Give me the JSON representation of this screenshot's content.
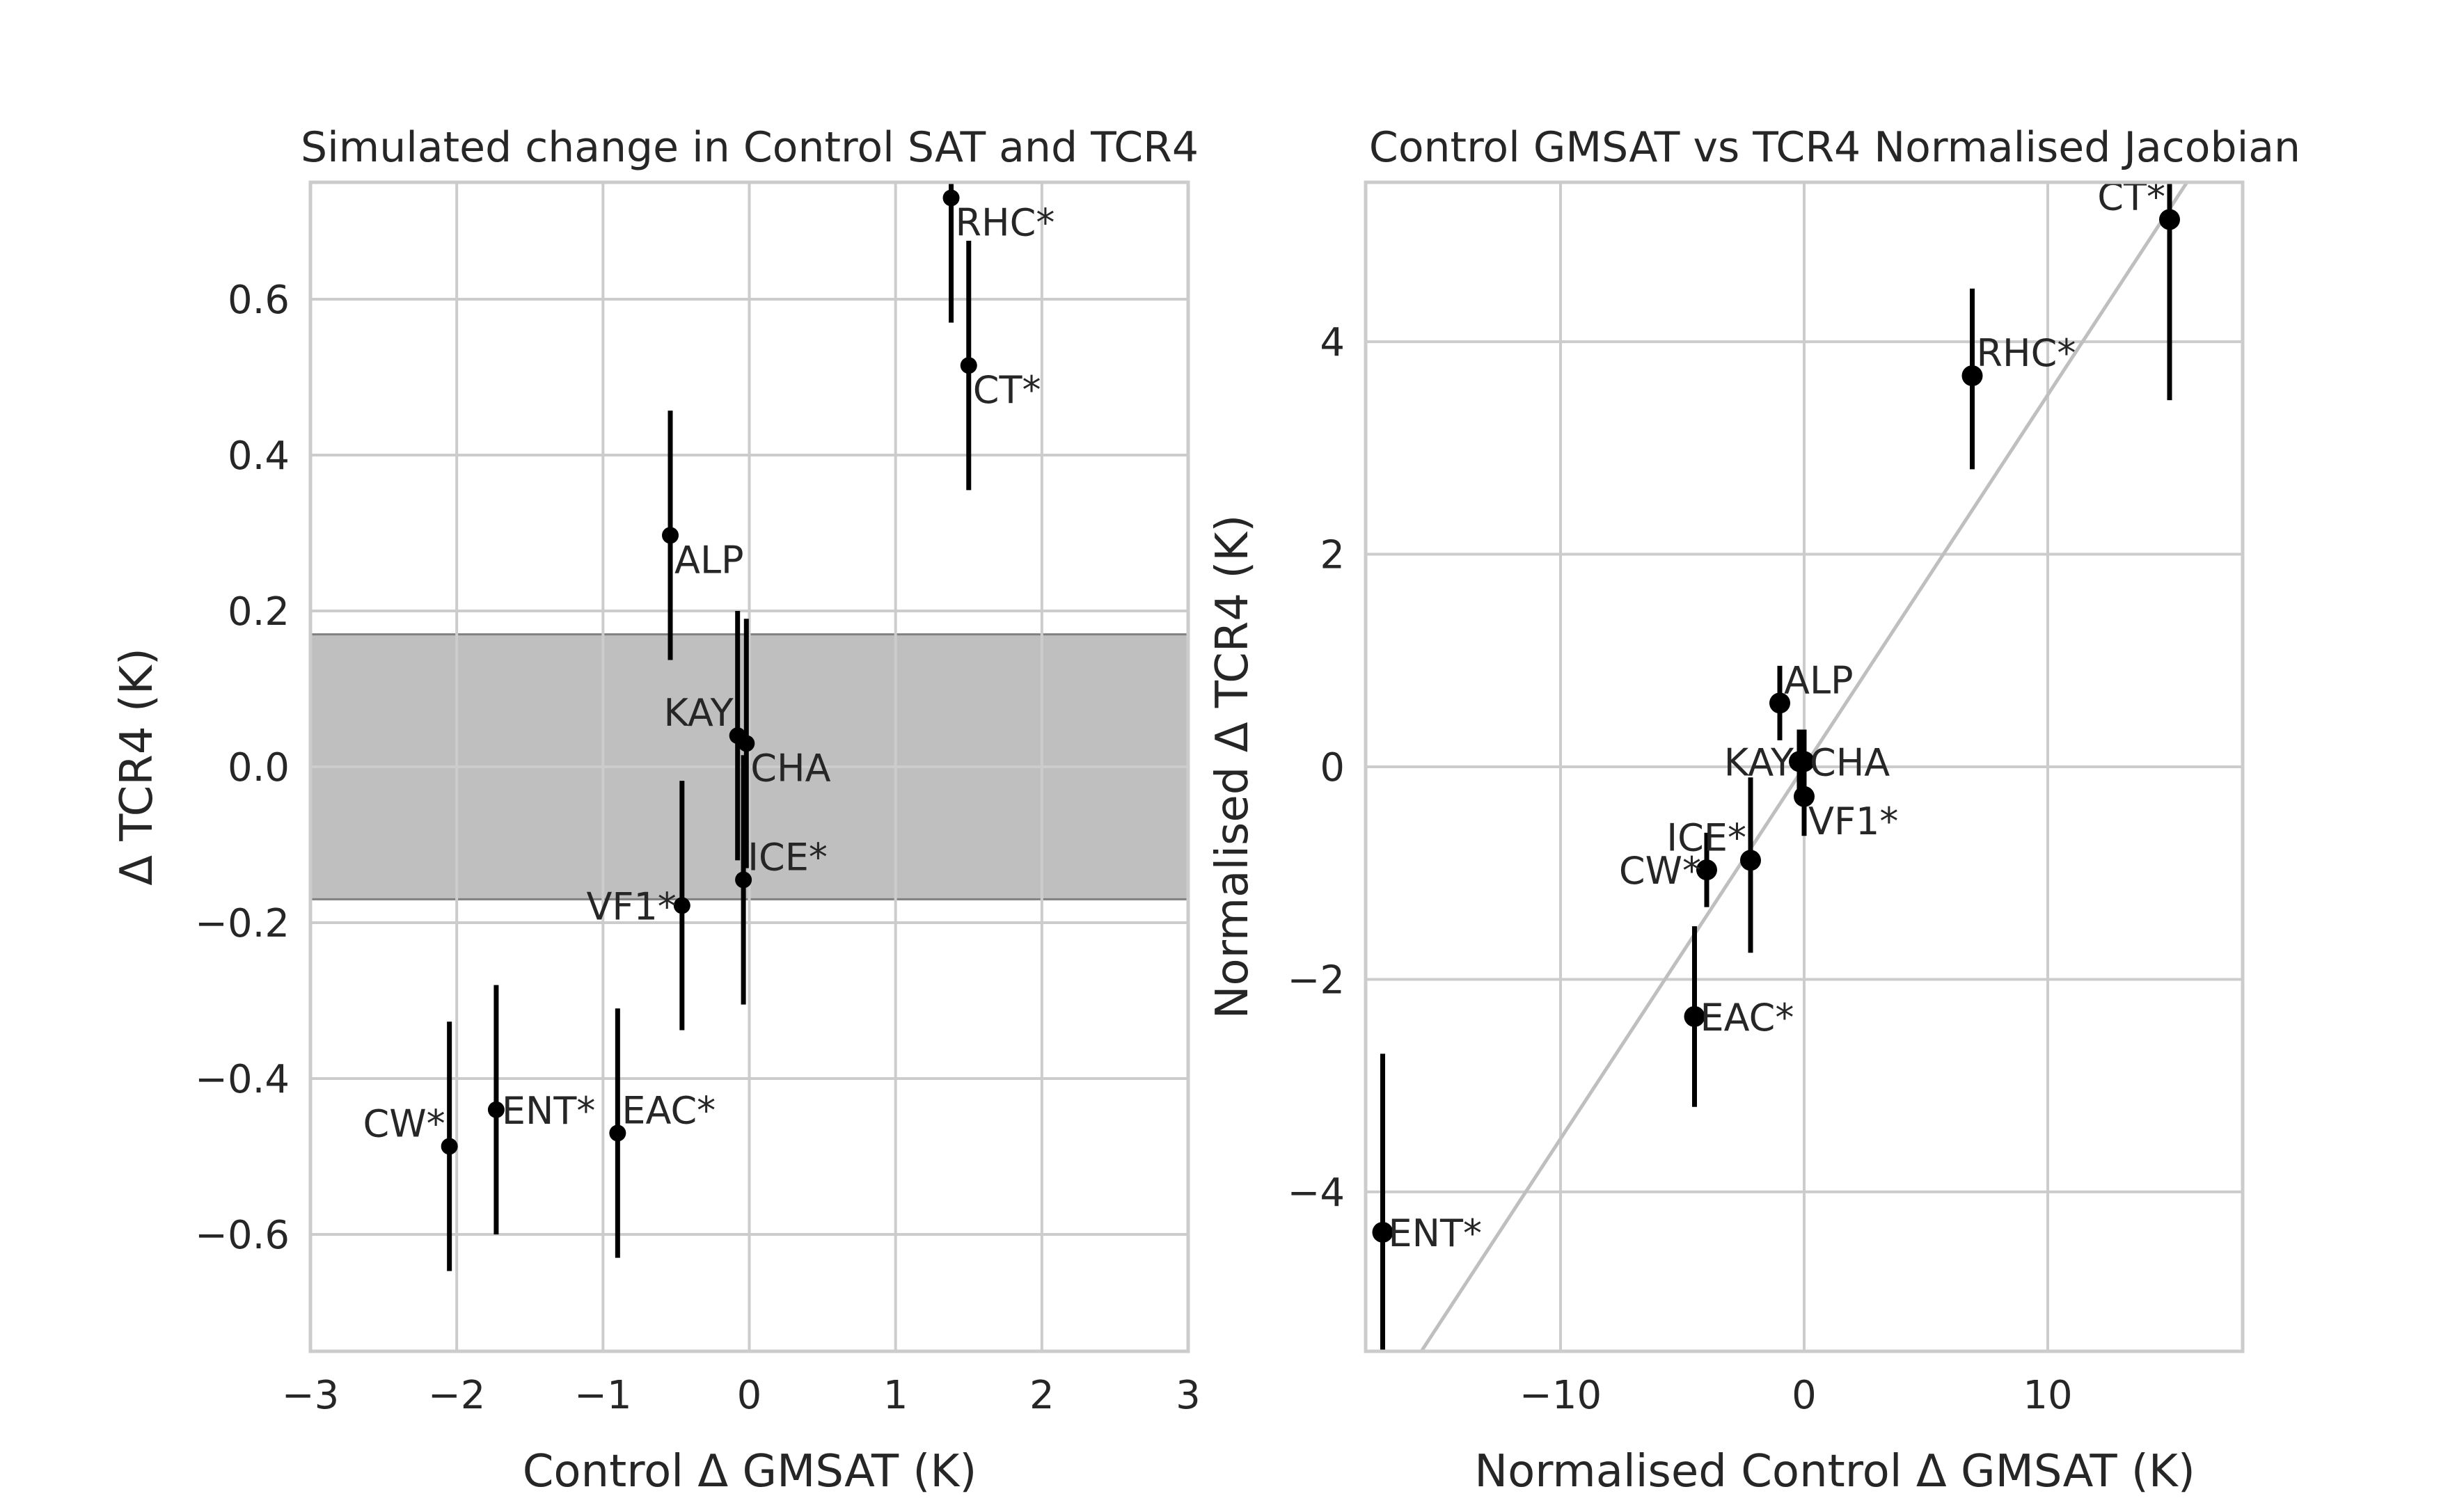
{
  "colors": {
    "background": "#ffffff",
    "grid": "#cccccc",
    "spine": "#cccccc",
    "point": "#000000",
    "band": "#808080",
    "fit_line": "#bfbfbf",
    "text": "#262626"
  },
  "chart_data": [
    {
      "type": "scatter",
      "title": "Simulated change in Control SAT and TCR4",
      "xlabel": "Control Δ GMSAT (K)",
      "ylabel": "Δ TCR4 (K)",
      "xlim": [
        -3,
        3
      ],
      "ylim": [
        -0.75,
        0.75
      ],
      "xticks": [
        -3,
        -2,
        -1,
        0,
        1,
        2,
        3
      ],
      "xtick_labels": [
        "−3",
        "−2",
        "−1",
        "0",
        "1",
        "2",
        "3"
      ],
      "yticks": [
        -0.6,
        -0.4,
        -0.2,
        0.0,
        0.2,
        0.4,
        0.6
      ],
      "ytick_labels": [
        "−0.6",
        "−0.4",
        "−0.2",
        "0.0",
        "0.2",
        "0.4",
        "0.6"
      ],
      "grid": true,
      "band": {
        "y_low": -0.17,
        "y_high": 0.17
      },
      "points": [
        {
          "label": "RHC*",
          "x": 1.38,
          "y": 0.73,
          "ylo": 0.57,
          "yhi": 0.75,
          "label_pos": "below-right"
        },
        {
          "label": "CT*",
          "x": 1.5,
          "y": 0.515,
          "ylo": 0.355,
          "yhi": 0.675,
          "label_pos": "below-right"
        },
        {
          "label": "ALP",
          "x": -0.54,
          "y": 0.297,
          "ylo": 0.137,
          "yhi": 0.457,
          "label_pos": "below-right"
        },
        {
          "label": "KAY",
          "x": -0.08,
          "y": 0.04,
          "ylo": -0.12,
          "yhi": 0.2,
          "label_pos": "above-left"
        },
        {
          "label": "CHA",
          "x": -0.02,
          "y": 0.03,
          "ylo": -0.13,
          "yhi": 0.19,
          "label_pos": "below-right"
        },
        {
          "label": "ICE*",
          "x": -0.04,
          "y": -0.145,
          "ylo": -0.305,
          "yhi": 0.015,
          "label_pos": "above-right"
        },
        {
          "label": "VF1*",
          "x": -0.46,
          "y": -0.178,
          "ylo": -0.338,
          "yhi": -0.018,
          "label_pos": "left"
        },
        {
          "label": "CW*",
          "x": -2.05,
          "y": -0.487,
          "ylo": -0.647,
          "yhi": -0.327,
          "label_pos": "above-left"
        },
        {
          "label": "ENT*",
          "x": -1.73,
          "y": -0.44,
          "ylo": -0.6,
          "yhi": -0.28,
          "label_pos": "right"
        },
        {
          "label": "EAC*",
          "x": -0.9,
          "y": -0.47,
          "ylo": -0.63,
          "yhi": -0.31,
          "label_pos": "above-right"
        }
      ]
    },
    {
      "type": "scatter",
      "title": "Control GMSAT vs TCR4 Normalised Jacobian",
      "xlabel": "Normalised Control Δ GMSAT (K)",
      "ylabel": "Normalised Δ TCR4 (K)",
      "xlim": [
        -18,
        18
      ],
      "ylim": [
        -5.5,
        5.5
      ],
      "xticks": [
        -10,
        0,
        10
      ],
      "xtick_labels": [
        "−10",
        "0",
        "10"
      ],
      "yticks": [
        -4,
        -2,
        0,
        2,
        4
      ],
      "ytick_labels": [
        "−4",
        "−2",
        "0",
        "2",
        "4"
      ],
      "grid": true,
      "fit_line": {
        "slope": 0.35,
        "intercept": 0.0
      },
      "points": [
        {
          "label": "CT*",
          "x": 15.0,
          "y": 5.15,
          "ylo": 3.45,
          "yhi": 5.5,
          "label_pos": "above-left"
        },
        {
          "label": "RHC*",
          "x": 6.9,
          "y": 3.68,
          "ylo": 2.8,
          "yhi": 4.5,
          "label_pos": "above-right"
        },
        {
          "label": "ALP",
          "x": -1.0,
          "y": 0.6,
          "ylo": 0.25,
          "yhi": 0.95,
          "label_pos": "above-right"
        },
        {
          "label": "KAY",
          "x": -0.2,
          "y": 0.05,
          "ylo": -0.25,
          "yhi": 0.35,
          "label_pos": "left"
        },
        {
          "label": "CHA",
          "x": 0.0,
          "y": 0.05,
          "ylo": -0.2,
          "yhi": 0.35,
          "label_pos": "right"
        },
        {
          "label": "ICE*",
          "x": -2.2,
          "y": -0.88,
          "ylo": -1.75,
          "yhi": -0.1,
          "label_pos": "above-left"
        },
        {
          "label": "VF1*",
          "x": 0.0,
          "y": -0.28,
          "ylo": -0.65,
          "yhi": 0.05,
          "label_pos": "below-right"
        },
        {
          "label": "CW*",
          "x": -4.0,
          "y": -0.97,
          "ylo": -1.32,
          "yhi": -0.62,
          "label_pos": "left"
        },
        {
          "label": "EAC*",
          "x": -4.5,
          "y": -2.35,
          "ylo": -3.2,
          "yhi": -1.5,
          "label_pos": "right"
        },
        {
          "label": "ENT*",
          "x": -17.3,
          "y": -4.38,
          "ylo": -5.5,
          "yhi": -2.7,
          "label_pos": "right"
        }
      ]
    }
  ]
}
